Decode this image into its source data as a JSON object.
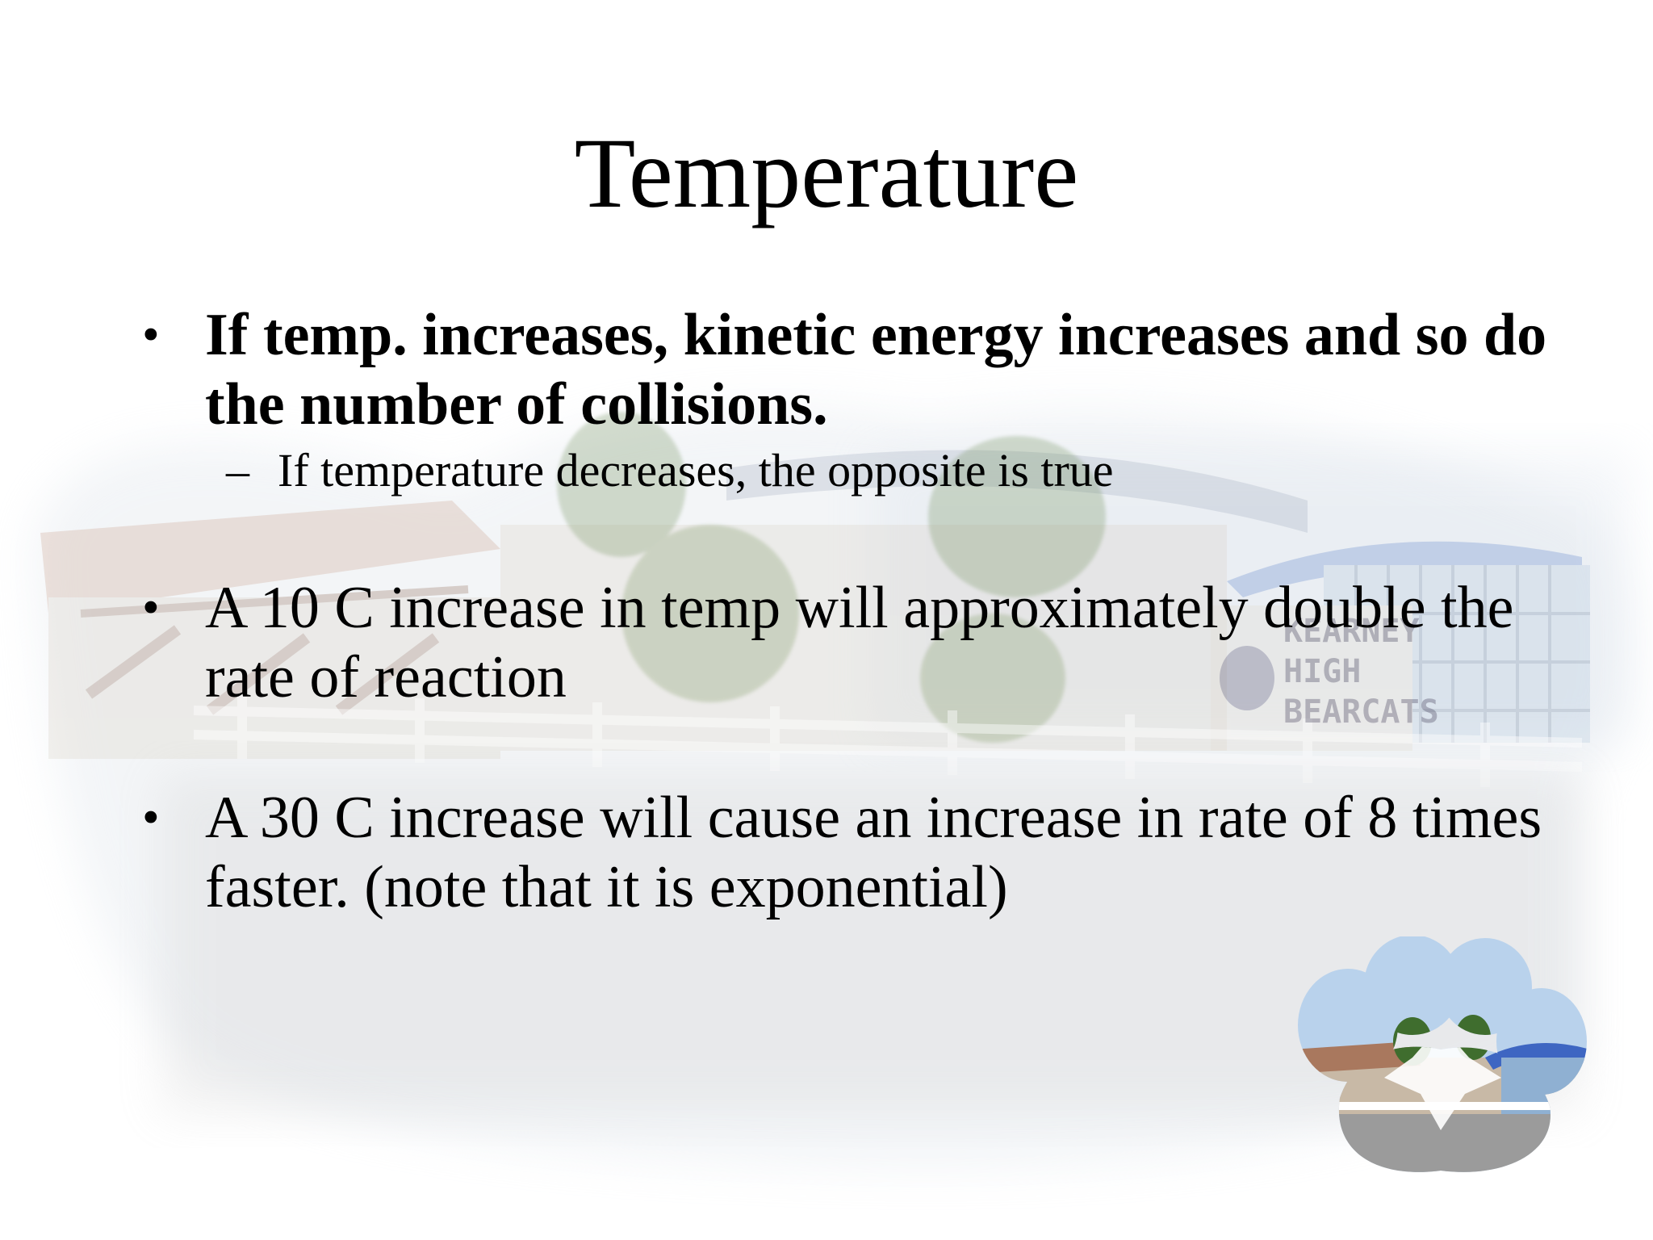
{
  "slide": {
    "title": "Temperature",
    "bullets": [
      {
        "text": "If temp. increases, kinetic energy increases and so do the number of collisions.",
        "bold": true,
        "sub_items": [
          "If temperature decreases, the opposite is true"
        ]
      },
      {
        "text": "A 10 C increase in temp will approximately double the rate of reaction",
        "bold": false
      },
      {
        "text": "A 30 C increase will cause an increase in rate of 8 times faster.  (note that it is exponential)",
        "bold": false
      }
    ],
    "bullet_glyph": "•",
    "sub_bullet_glyph": "–",
    "background_sign_text": [
      "KEARNEY",
      "HIGH",
      "BEARCATS"
    ],
    "colors": {
      "text": "#000000",
      "sky": "#dfe7ef",
      "roof_blue": "#6d8fd0",
      "building_tan": "#d8cfc3",
      "brick": "#c9a18d"
    }
  }
}
